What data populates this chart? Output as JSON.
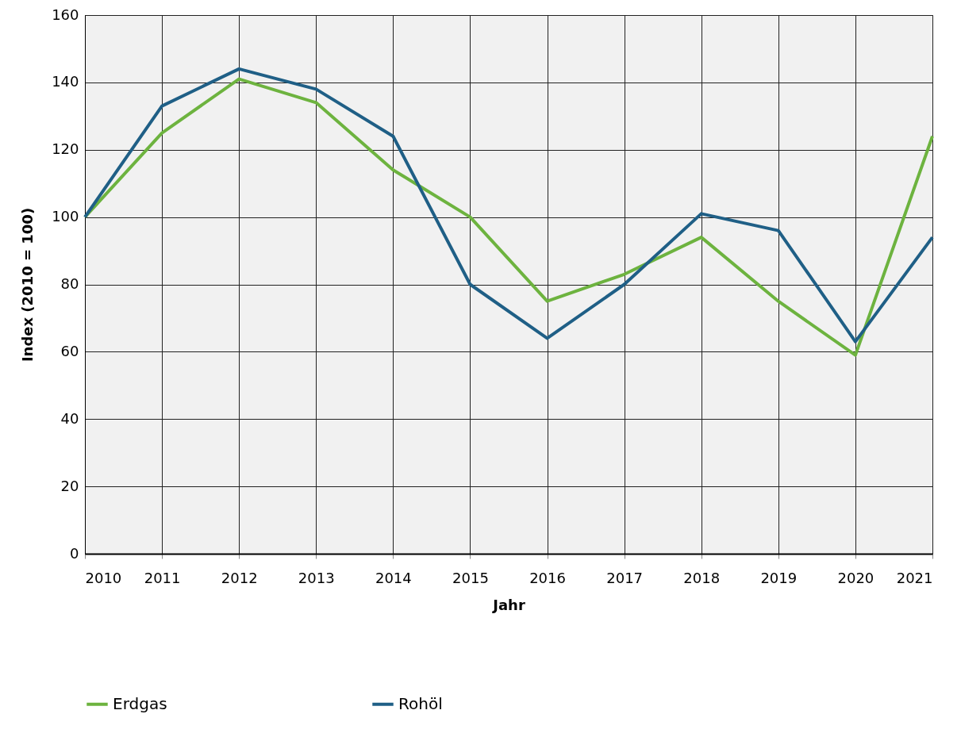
{
  "chart_data": {
    "type": "line",
    "xlabel": "Jahr",
    "ylabel": "Index (2010 = 100)",
    "x": [
      2010,
      2011,
      2012,
      2013,
      2014,
      2015,
      2016,
      2017,
      2018,
      2019,
      2020,
      2021
    ],
    "series": [
      {
        "name": "Erdgas",
        "color": "#6db33f",
        "values": [
          100,
          125,
          141,
          134,
          114,
          100,
          75,
          83,
          94,
          75,
          59,
          124
        ]
      },
      {
        "name": "Rohöl",
        "color": "#1f5f86",
        "values": [
          100,
          133,
          144,
          138,
          124,
          80,
          64,
          80,
          101,
          96,
          63,
          94
        ]
      }
    ],
    "xlim": [
      2010,
      2021
    ],
    "xticks": [
      2010,
      2011,
      2012,
      2013,
      2014,
      2015,
      2016,
      2017,
      2018,
      2019,
      2020,
      2021
    ],
    "ylim": [
      0,
      160
    ],
    "yticks": [
      0,
      20,
      40,
      60,
      80,
      100,
      120,
      140,
      160
    ],
    "grid": true,
    "legend": "bottom",
    "marker": "none",
    "line_style": "solid"
  }
}
